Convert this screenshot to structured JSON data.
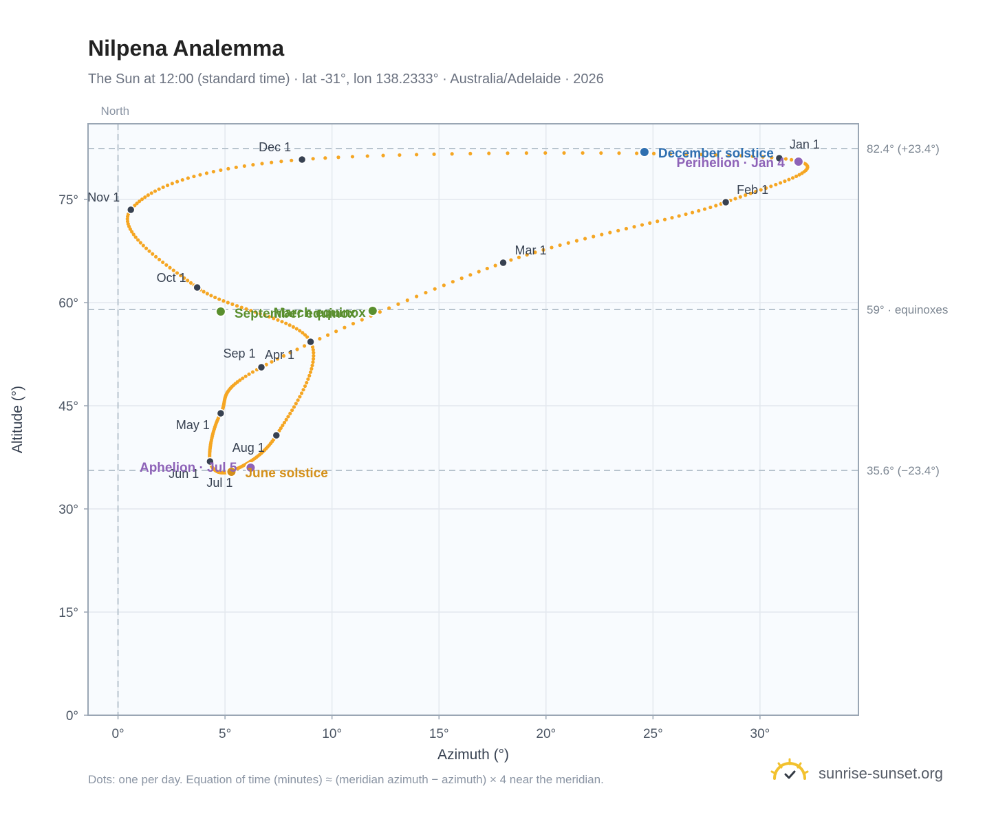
{
  "title": "Nilpena Analemma",
  "subtitle": "The Sun at 12:00 (standard time) · lat -31°, lon 138.2333° · Australia/Adelaide · 2026",
  "footnote": "Dots: one per day. Equation of time (minutes) ≈ (meridian azimuth − azimuth) × 4 near the meridian.",
  "brand": {
    "name": "sunrise-sunset.org",
    "icon": "sun-check-icon"
  },
  "colors": {
    "path": "#f5a623",
    "month_marker": "#374151",
    "equinox": "#5a8f2e",
    "december_solstice": "#2f6fb0",
    "june_solstice": "#d4901a",
    "perihelion_aphelion": "#8e63b8",
    "plot_bg": "#f8fbfe",
    "grid": "#e3e8ee",
    "reference_line": "#b8c4ce",
    "axis_text": "#4b5563"
  },
  "chart_data": {
    "type": "scatter",
    "xlabel": "Azimuth (°)",
    "ylabel": "Altitude (°)",
    "xlim": [
      -1.4,
      34.6
    ],
    "ylim": [
      0,
      86
    ],
    "xticks": [
      0,
      5,
      10,
      15,
      20,
      25,
      30
    ],
    "xtick_labels": [
      "0°",
      "5°",
      "10°",
      "15°",
      "20°",
      "25°",
      "30°"
    ],
    "yticks": [
      0,
      15,
      30,
      45,
      60,
      75
    ],
    "ytick_labels": [
      "0°",
      "15°",
      "30°",
      "45°",
      "60°",
      "75°"
    ],
    "grid": true,
    "meridian_label": "North",
    "meridian_azimuth": 0,
    "reference_lines": [
      {
        "altitude": 82.4,
        "label": "82.4° (+23.4°)"
      },
      {
        "altitude": 59,
        "label": "59° · equinoxes"
      },
      {
        "altitude": 35.6,
        "label": "35.6° (−23.4°)"
      }
    ],
    "month_markers": [
      {
        "label": "Jan 1",
        "azimuth": 30.9,
        "altitude": 81.0
      },
      {
        "label": "Feb 1",
        "azimuth": 28.4,
        "altitude": 74.6
      },
      {
        "label": "Mar 1",
        "azimuth": 18.0,
        "altitude": 65.8
      },
      {
        "label": "Apr 1",
        "azimuth": 6.7,
        "altitude": 50.6
      },
      {
        "label": "May 1",
        "azimuth": 4.8,
        "altitude": 43.9
      },
      {
        "label": "Jun 1",
        "azimuth": 4.3,
        "altitude": 36.9
      },
      {
        "label": "Jul 1",
        "azimuth": 5.3,
        "altitude": 35.5
      },
      {
        "label": "Aug 1",
        "azimuth": 7.4,
        "altitude": 40.7
      },
      {
        "label": "Sep 1",
        "azimuth": 9.0,
        "altitude": 54.3
      },
      {
        "label": "Oct 1",
        "azimuth": 3.7,
        "altitude": 62.2
      },
      {
        "label": "Nov 1",
        "azimuth": 0.6,
        "altitude": 73.5
      },
      {
        "label": "Dec 1",
        "azimuth": 8.6,
        "altitude": 80.8
      }
    ],
    "special_points": [
      {
        "label": "December solstice",
        "azimuth": 24.6,
        "altitude": 81.9,
        "kind": "december_solstice"
      },
      {
        "label": "Perihelion · Jan 4",
        "azimuth": 31.8,
        "altitude": 80.5,
        "kind": "perihelion_aphelion"
      },
      {
        "label": "March equinox",
        "azimuth": 11.9,
        "altitude": 58.8,
        "kind": "equinox"
      },
      {
        "label": "September equinox",
        "azimuth": 4.8,
        "altitude": 58.7,
        "kind": "equinox"
      },
      {
        "label": "June solstice",
        "azimuth": 5.3,
        "altitude": 35.4,
        "kind": "june_solstice"
      },
      {
        "label": "Aphelion · Jul 5",
        "azimuth": 6.2,
        "altitude": 36.0,
        "kind": "perihelion_aphelion"
      }
    ]
  }
}
